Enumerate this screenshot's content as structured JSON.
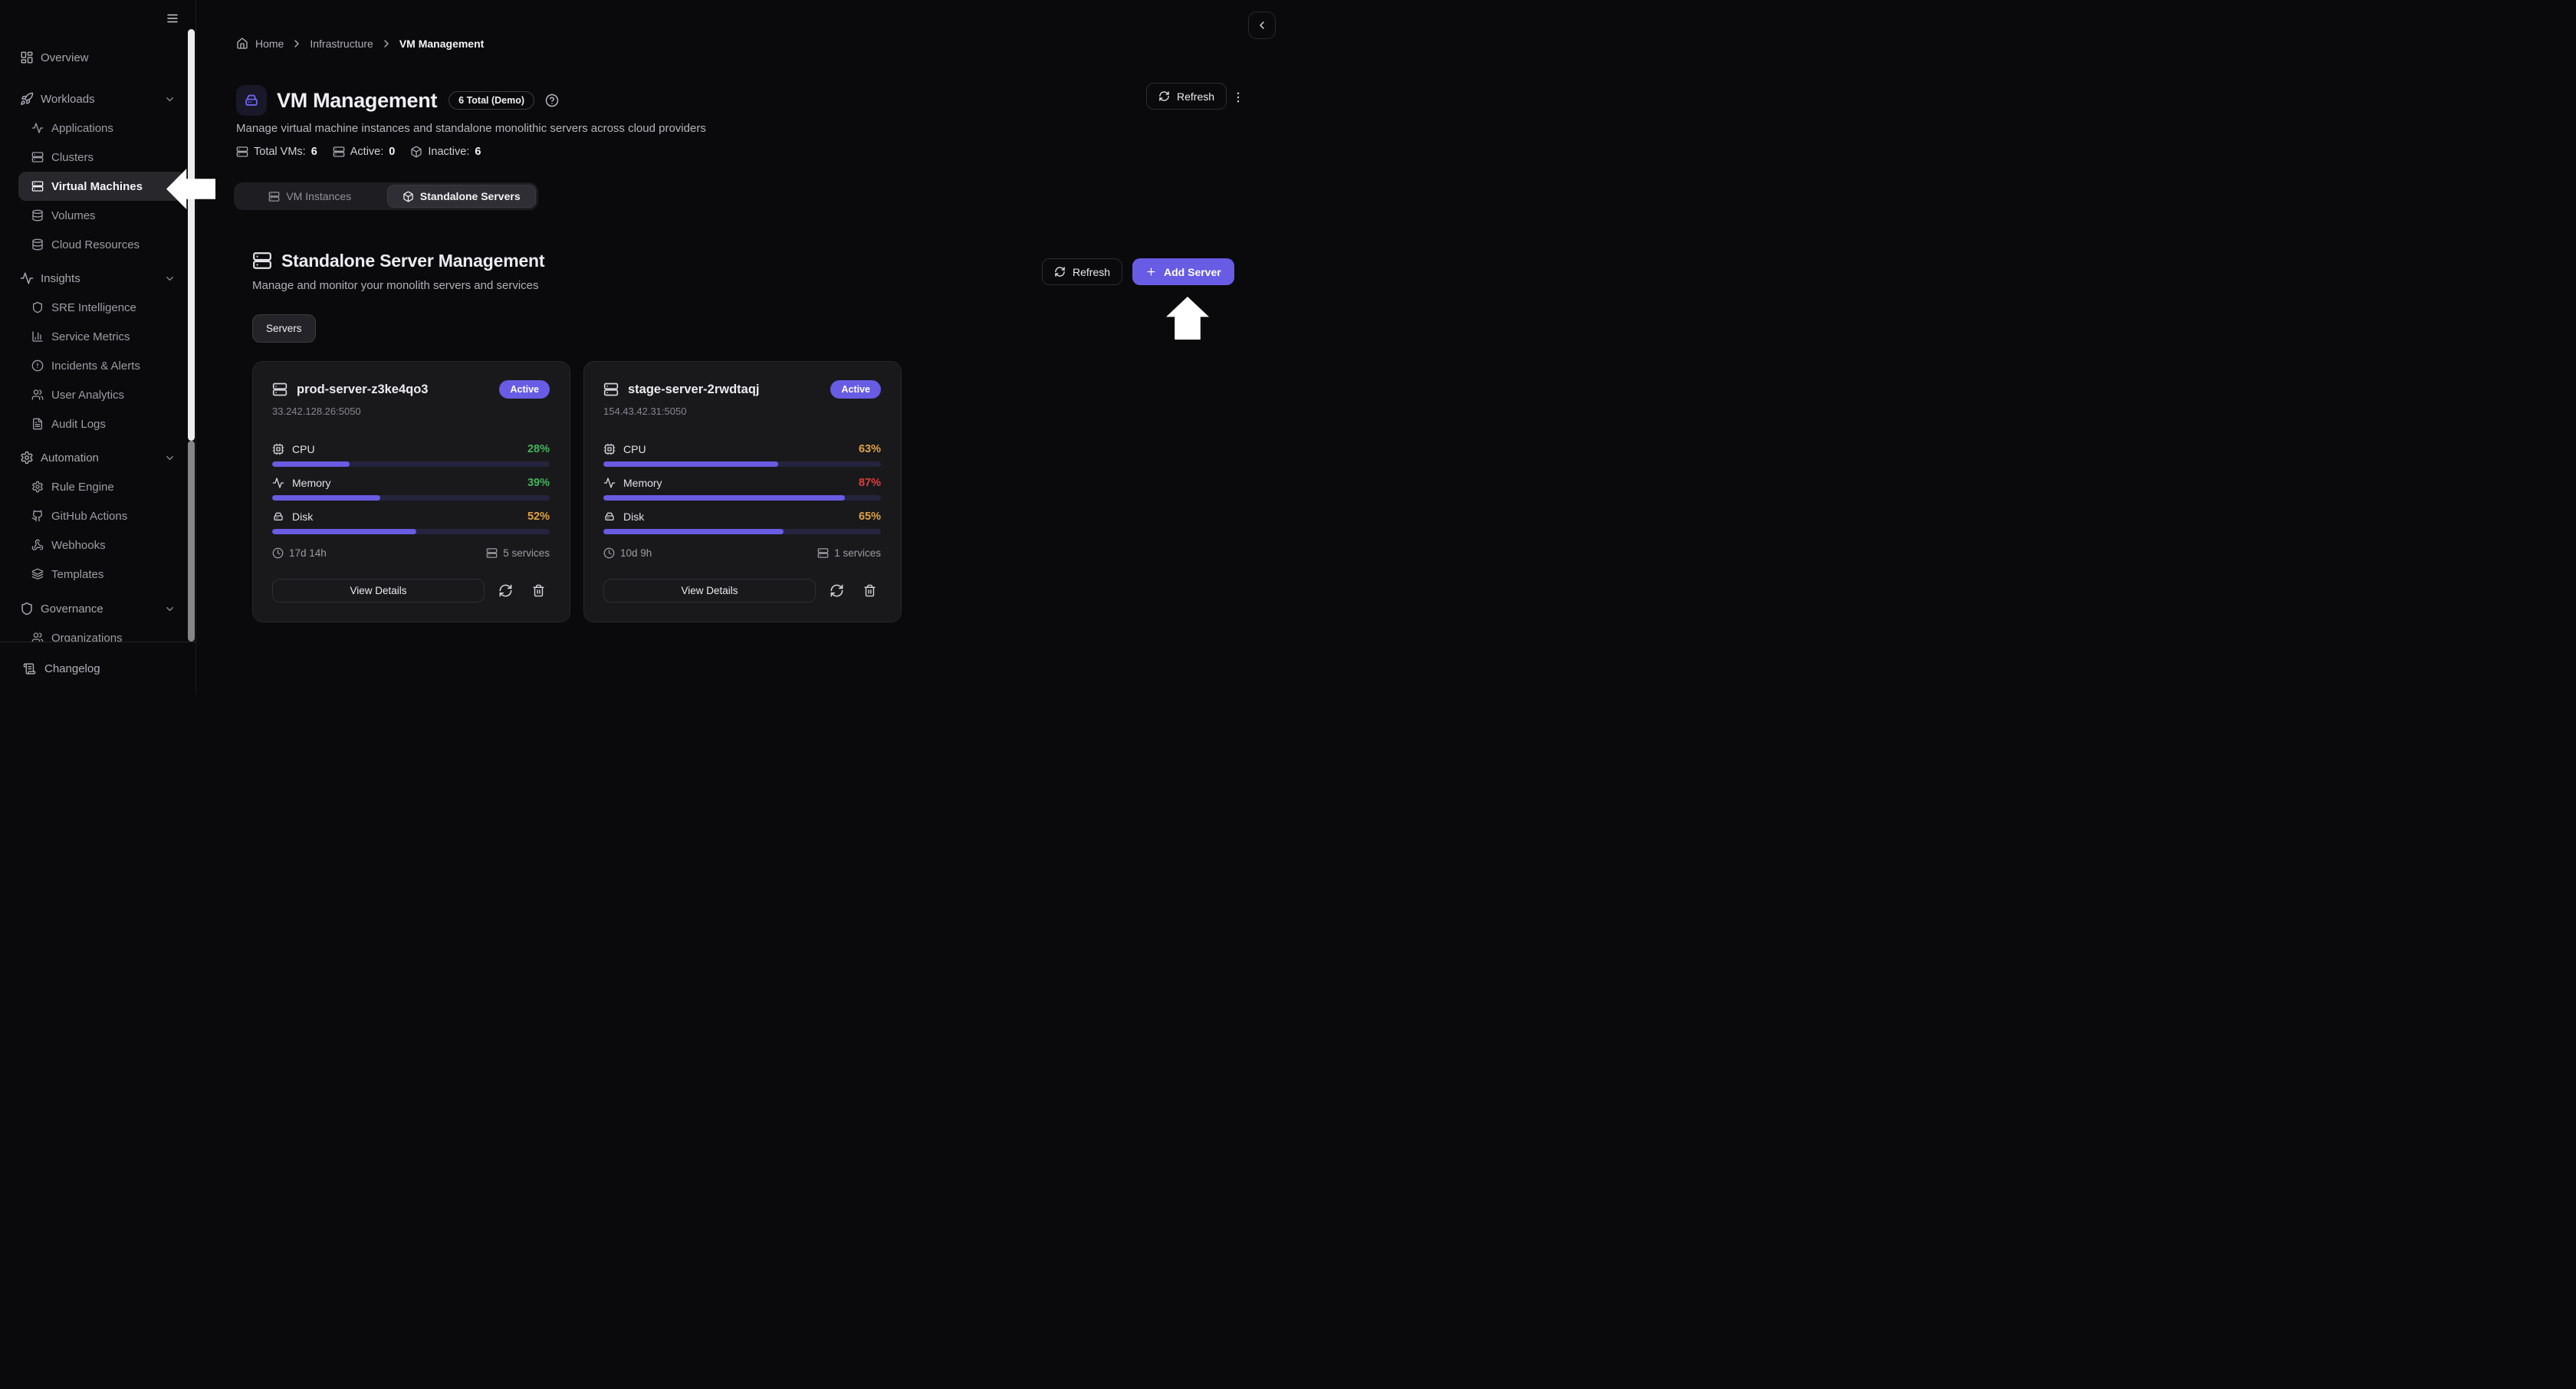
{
  "sidebar": {
    "items": [
      {
        "label": "Overview",
        "icon": "grid",
        "indent": false,
        "selected": false,
        "chevron": false
      },
      {
        "label": "Workloads",
        "icon": "rocket",
        "indent": false,
        "selected": false,
        "chevron": true
      },
      {
        "label": "Applications",
        "icon": "activity",
        "indent": true,
        "selected": false,
        "chevron": false
      },
      {
        "label": "Clusters",
        "icon": "server",
        "indent": true,
        "selected": false,
        "chevron": false
      },
      {
        "label": "Virtual Machines",
        "icon": "server",
        "indent": true,
        "selected": true,
        "chevron": false
      },
      {
        "label": "Volumes",
        "icon": "db",
        "indent": true,
        "selected": false,
        "chevron": false
      },
      {
        "label": "Cloud Resources",
        "icon": "db",
        "indent": true,
        "selected": false,
        "chevron": false
      },
      {
        "label": "Insights",
        "icon": "activity",
        "indent": false,
        "selected": false,
        "chevron": true
      },
      {
        "label": "SRE Intelligence",
        "icon": "shield",
        "indent": true,
        "selected": false,
        "chevron": false
      },
      {
        "label": "Service Metrics",
        "icon": "chart",
        "indent": true,
        "selected": false,
        "chevron": false
      },
      {
        "label": "Incidents & Alerts",
        "icon": "alert",
        "indent": true,
        "selected": false,
        "chevron": false
      },
      {
        "label": "User Analytics",
        "icon": "users",
        "indent": true,
        "selected": false,
        "chevron": false
      },
      {
        "label": "Audit Logs",
        "icon": "file",
        "indent": true,
        "selected": false,
        "chevron": false
      },
      {
        "label": "Automation",
        "icon": "gear",
        "indent": false,
        "selected": false,
        "chevron": true
      },
      {
        "label": "Rule Engine",
        "icon": "gear",
        "indent": true,
        "selected": false,
        "chevron": false
      },
      {
        "label": "GitHub Actions",
        "icon": "github",
        "indent": true,
        "selected": false,
        "chevron": false
      },
      {
        "label": "Webhooks",
        "icon": "webhook",
        "indent": true,
        "selected": false,
        "chevron": false
      },
      {
        "label": "Templates",
        "icon": "layers",
        "indent": true,
        "selected": false,
        "chevron": false
      },
      {
        "label": "Governance",
        "icon": "shield",
        "indent": false,
        "selected": false,
        "chevron": true
      },
      {
        "label": "Organizations",
        "icon": "users",
        "indent": true,
        "selected": false,
        "chevron": false
      }
    ],
    "changelog_label": "Changelog"
  },
  "breadcrumb": {
    "home": "Home",
    "section": "Infrastructure",
    "current": "VM Management"
  },
  "header": {
    "title": "VM Management",
    "badge": "6 Total (Demo)",
    "subtitle": "Manage virtual machine instances and standalone monolithic servers across cloud providers",
    "refresh_label": "Refresh"
  },
  "stats": {
    "total_label": "Total VMs:",
    "total_value": "6",
    "active_label": "Active:",
    "active_value": "0",
    "inactive_label": "Inactive:",
    "inactive_value": "6"
  },
  "tabs": {
    "vm_instances": "VM Instances",
    "standalone_servers": "Standalone Servers"
  },
  "section": {
    "title": "Standalone Server Management",
    "subtitle": "Manage and monitor your monolith servers and services",
    "refresh_label": "Refresh",
    "add_label": "Add Server",
    "servers_tab": "Servers"
  },
  "cards": [
    {
      "name": "prod-server-z3ke4qo3",
      "status": "Active",
      "address": "33.242.128.26:5050",
      "metrics": [
        {
          "label": "CPU",
          "value": "28%",
          "pct": 28,
          "color": "#43b35c"
        },
        {
          "label": "Memory",
          "value": "39%",
          "pct": 39,
          "color": "#43b35c"
        },
        {
          "label": "Disk",
          "value": "52%",
          "pct": 52,
          "color": "#dfa23f"
        }
      ],
      "uptime": "17d 14h",
      "services": "5 services",
      "view_details": "View Details"
    },
    {
      "name": "stage-server-2rwdtaqj",
      "status": "Active",
      "address": "154.43.42.31:5050",
      "metrics": [
        {
          "label": "CPU",
          "value": "63%",
          "pct": 63,
          "color": "#dfa23f"
        },
        {
          "label": "Memory",
          "value": "87%",
          "pct": 87,
          "color": "#e23c3c"
        },
        {
          "label": "Disk",
          "value": "65%",
          "pct": 65,
          "color": "#dfa23f"
        }
      ],
      "uptime": "10d 9h",
      "services": "1 services",
      "view_details": "View Details"
    }
  ],
  "colors": {
    "accent": "#685ce4",
    "green": "#43b35c",
    "orange": "#dfa23f",
    "red": "#e23c3c"
  }
}
